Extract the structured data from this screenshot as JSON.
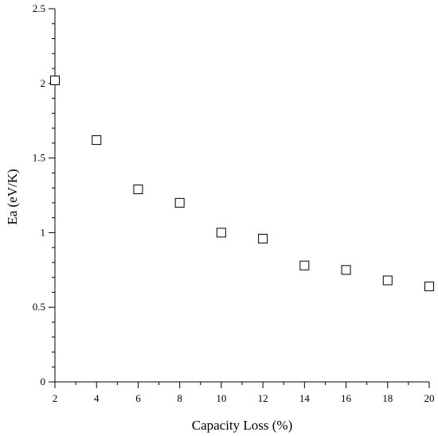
{
  "chart_data": {
    "type": "scatter",
    "title": "",
    "xlabel": "Capacity Loss (%)",
    "ylabel": "Ea (eV/K)",
    "x": [
      2,
      4,
      6,
      8,
      10,
      12,
      14,
      16,
      18,
      20
    ],
    "y": [
      2.02,
      1.62,
      1.29,
      1.2,
      1.0,
      0.96,
      0.78,
      0.75,
      0.68,
      0.64
    ],
    "xlim": [
      2,
      20
    ],
    "ylim": [
      0,
      2.5
    ],
    "xticks": [
      2,
      4,
      6,
      8,
      10,
      12,
      14,
      16,
      18,
      20
    ],
    "xtick_labels": [
      "2",
      "4",
      "6",
      "8",
      "10",
      "12",
      "14",
      "16",
      "18",
      "20"
    ],
    "yticks": [
      0,
      0.5,
      1,
      1.5,
      2,
      2.5
    ],
    "ytick_labels": [
      "0",
      "0.5",
      "1",
      "1.5",
      "2",
      "2.5"
    ],
    "y_minor_step": 0.1,
    "x_minor_step": 1,
    "marker": "open-square",
    "marker_color": "#000000",
    "grid": false,
    "legend": "none"
  }
}
